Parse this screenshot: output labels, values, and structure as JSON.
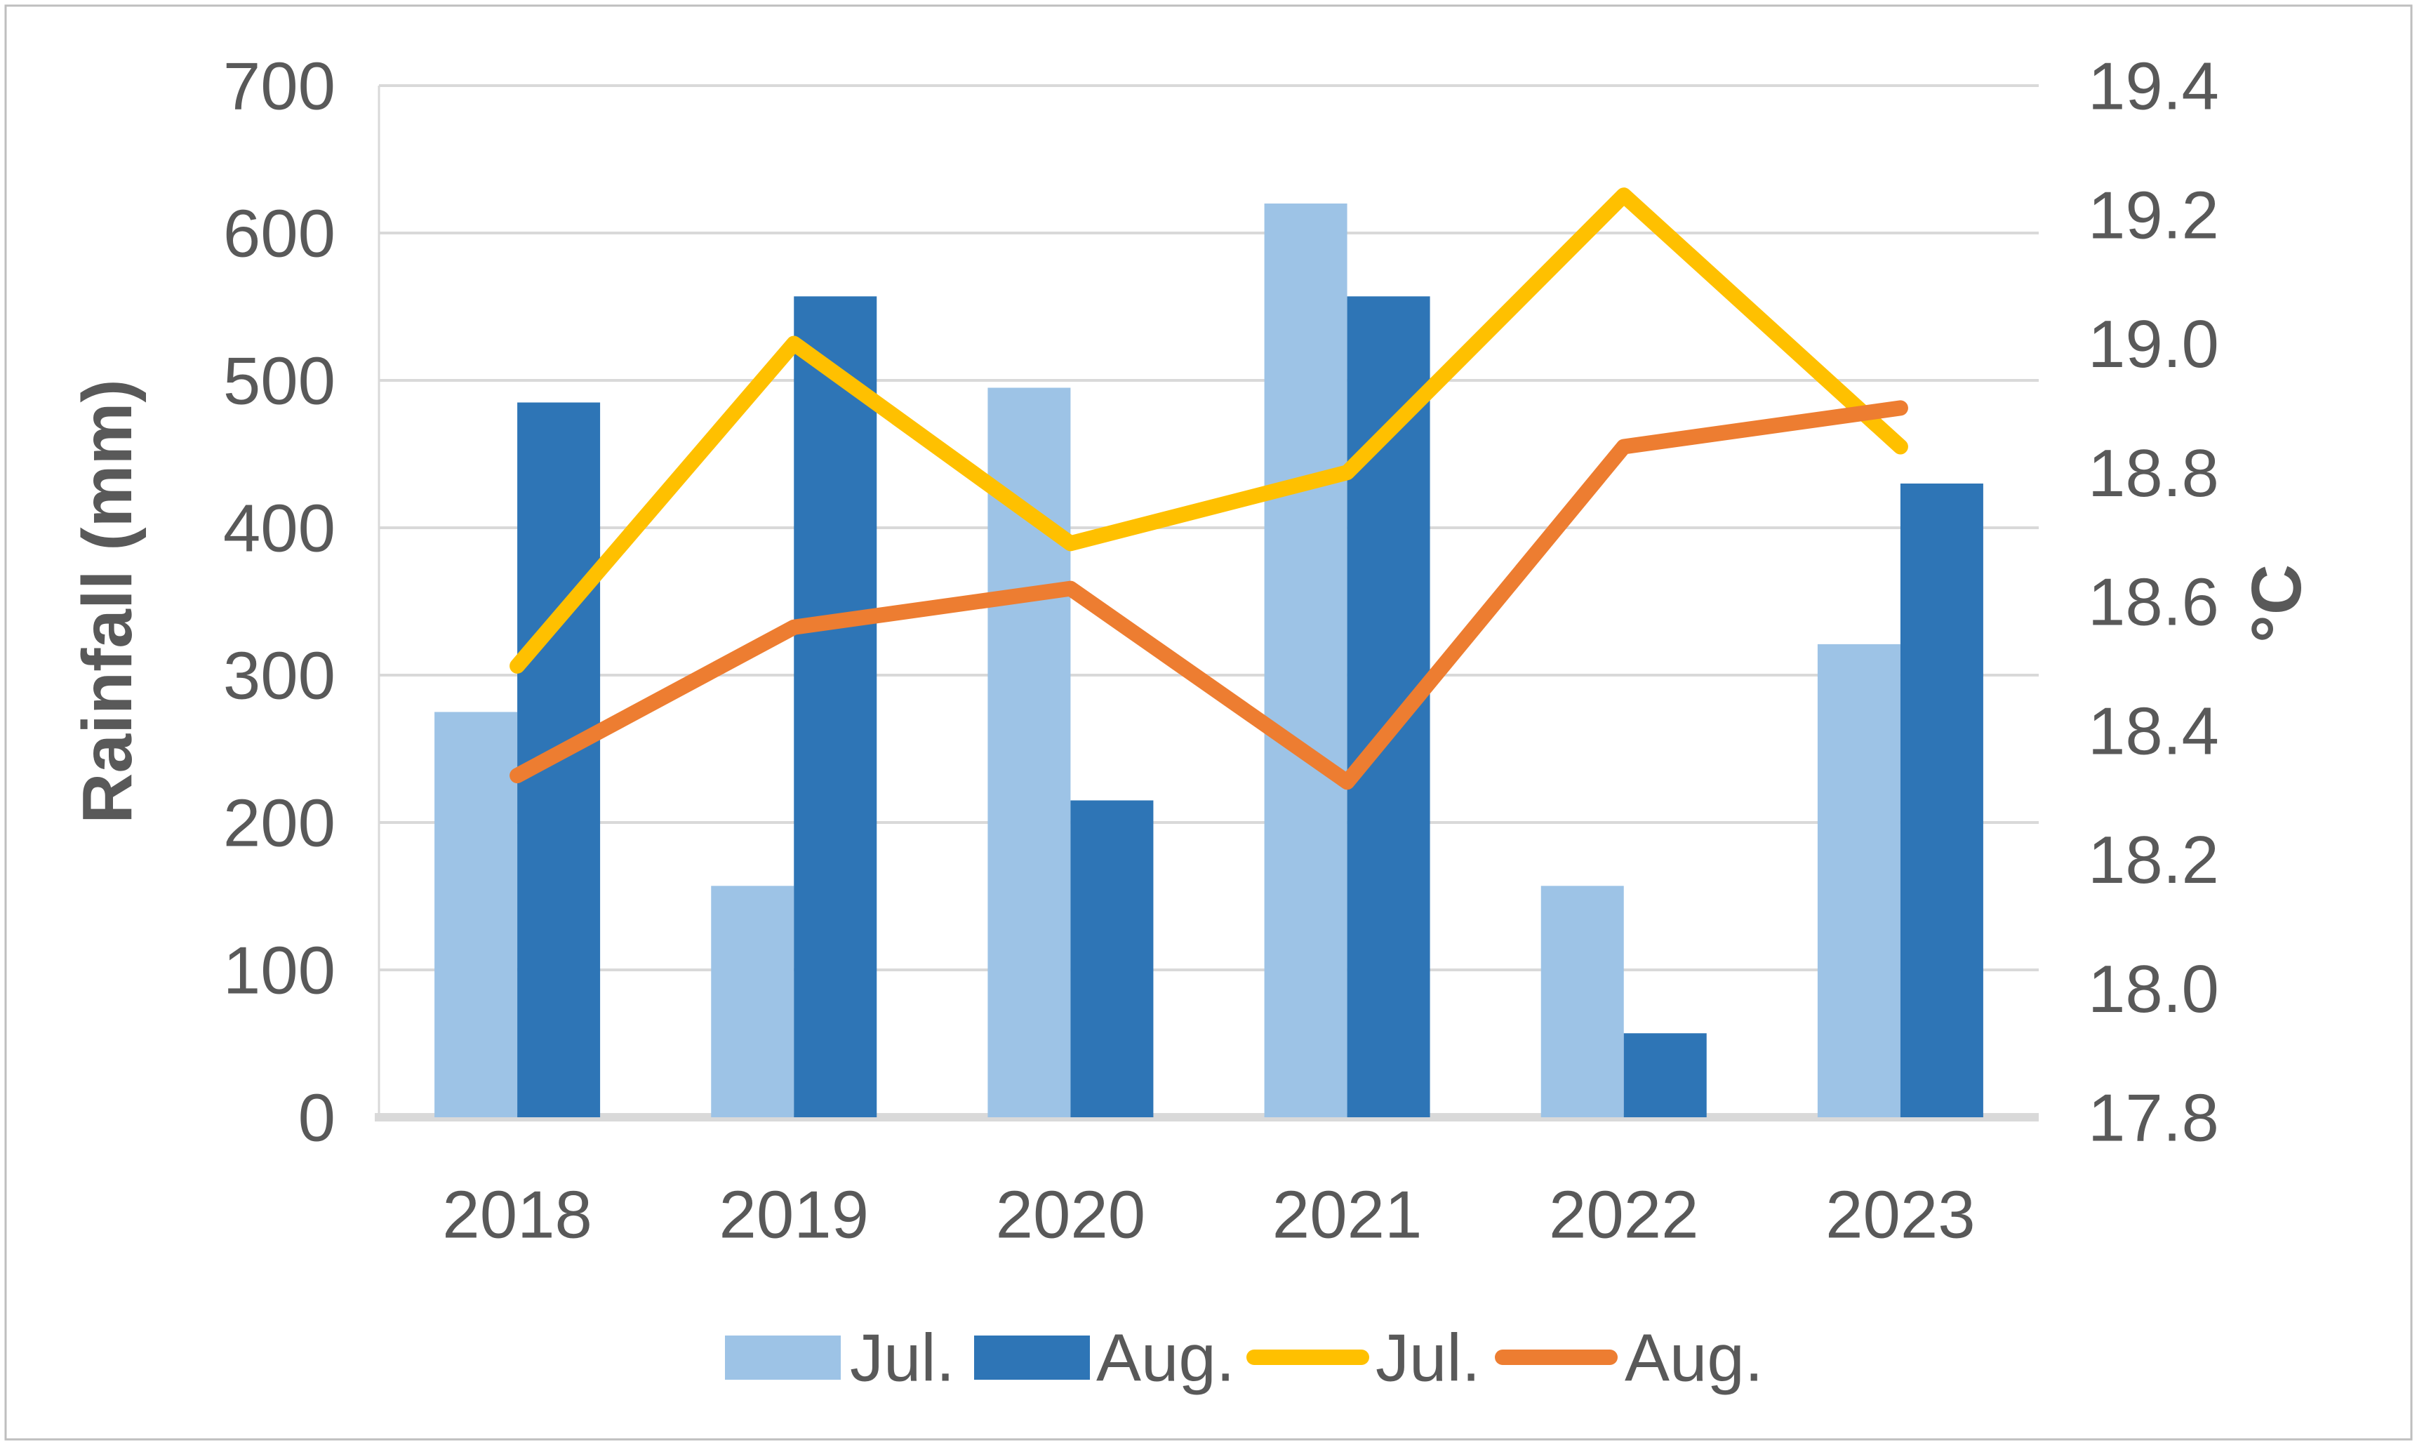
{
  "chart_data": {
    "type": "combo grouped-bar + line, dual y-axis",
    "categories": [
      "2018",
      "2019",
      "2020",
      "2021",
      "2022",
      "2023"
    ],
    "series": [
      {
        "name": "Jul.",
        "kind": "bar",
        "axis": "left",
        "color": "#9DC3E6",
        "values": [
          275,
          157,
          495,
          620,
          157,
          321
        ]
      },
      {
        "name": "Aug.",
        "kind": "bar",
        "axis": "left",
        "color": "#2E75B6",
        "values": [
          485,
          557,
          215,
          557,
          57,
          430
        ]
      },
      {
        "name": "Jul.",
        "kind": "line",
        "axis": "right",
        "color": "#FFC000",
        "values": [
          18.5,
          19.0,
          18.69,
          18.8,
          19.23,
          18.84
        ]
      },
      {
        "name": "Aug.",
        "kind": "line",
        "axis": "right",
        "color": "#ED7D31",
        "values": [
          18.33,
          18.56,
          18.62,
          18.32,
          18.84,
          18.9
        ]
      }
    ],
    "left_axis": {
      "title": "Rainfall (mm)",
      "min": 0,
      "max": 700,
      "step": 100,
      "tick_labels": [
        "0",
        "100",
        "200",
        "300",
        "400",
        "500",
        "600",
        "700"
      ]
    },
    "right_axis": {
      "title": "°C",
      "min": 17.8,
      "max": 19.4,
      "step": 0.2,
      "tick_labels": [
        "17.8",
        "18.0",
        "18.2",
        "18.4",
        "18.6",
        "18.8",
        "19.0",
        "19.2",
        "19.4"
      ]
    },
    "grid": true,
    "legend_position": "bottom",
    "legend": [
      {
        "label": "Jul.",
        "swatch": "box",
        "color": "#9DC3E6"
      },
      {
        "label": "Aug.",
        "swatch": "box",
        "color": "#2E75B6"
      },
      {
        "label": "Jul.",
        "swatch": "line",
        "color": "#FFC000"
      },
      {
        "label": "Aug.",
        "swatch": "line",
        "color": "#ED7D31"
      }
    ]
  },
  "styles": {
    "text_color": "#595959",
    "grid_color": "#D9D9D9",
    "axis_line_color": "#D9D9D9",
    "border_color": "#BFBFBF",
    "background": "#FFFFFF"
  }
}
